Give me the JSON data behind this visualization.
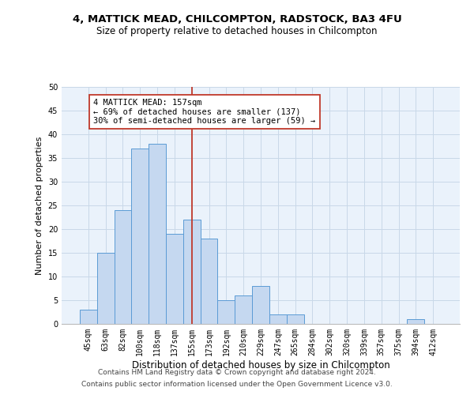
{
  "title_line1": "4, MATTICK MEAD, CHILCOMPTON, RADSTOCK, BA3 4FU",
  "title_line2": "Size of property relative to detached houses in Chilcompton",
  "xlabel": "Distribution of detached houses by size in Chilcompton",
  "ylabel": "Number of detached properties",
  "categories": [
    "45sqm",
    "63sqm",
    "82sqm",
    "100sqm",
    "118sqm",
    "137sqm",
    "155sqm",
    "173sqm",
    "192sqm",
    "210sqm",
    "229sqm",
    "247sqm",
    "265sqm",
    "284sqm",
    "302sqm",
    "320sqm",
    "339sqm",
    "357sqm",
    "375sqm",
    "394sqm",
    "412sqm"
  ],
  "values": [
    3,
    15,
    24,
    37,
    38,
    19,
    22,
    18,
    5,
    6,
    8,
    2,
    2,
    0,
    0,
    0,
    0,
    0,
    0,
    1,
    0
  ],
  "bar_color": "#c5d8f0",
  "bar_edge_color": "#5b9bd5",
  "reference_line_x": 6,
  "reference_line_color": "#c0392b",
  "annotation_box_text": "4 MATTICK MEAD: 157sqm\n← 69% of detached houses are smaller (137)\n30% of semi-detached houses are larger (59) →",
  "box_edge_color": "#c0392b",
  "ylim": [
    0,
    50
  ],
  "yticks": [
    0,
    5,
    10,
    15,
    20,
    25,
    30,
    35,
    40,
    45,
    50
  ],
  "grid_color": "#c8d8e8",
  "bg_color": "#eaf2fb",
  "footer_line1": "Contains HM Land Registry data © Crown copyright and database right 2024.",
  "footer_line2": "Contains public sector information licensed under the Open Government Licence v3.0.",
  "title_fontsize": 9.5,
  "subtitle_fontsize": 8.5,
  "xlabel_fontsize": 8.5,
  "ylabel_fontsize": 8,
  "tick_fontsize": 7,
  "annotation_fontsize": 7.5,
  "footer_fontsize": 6.5
}
